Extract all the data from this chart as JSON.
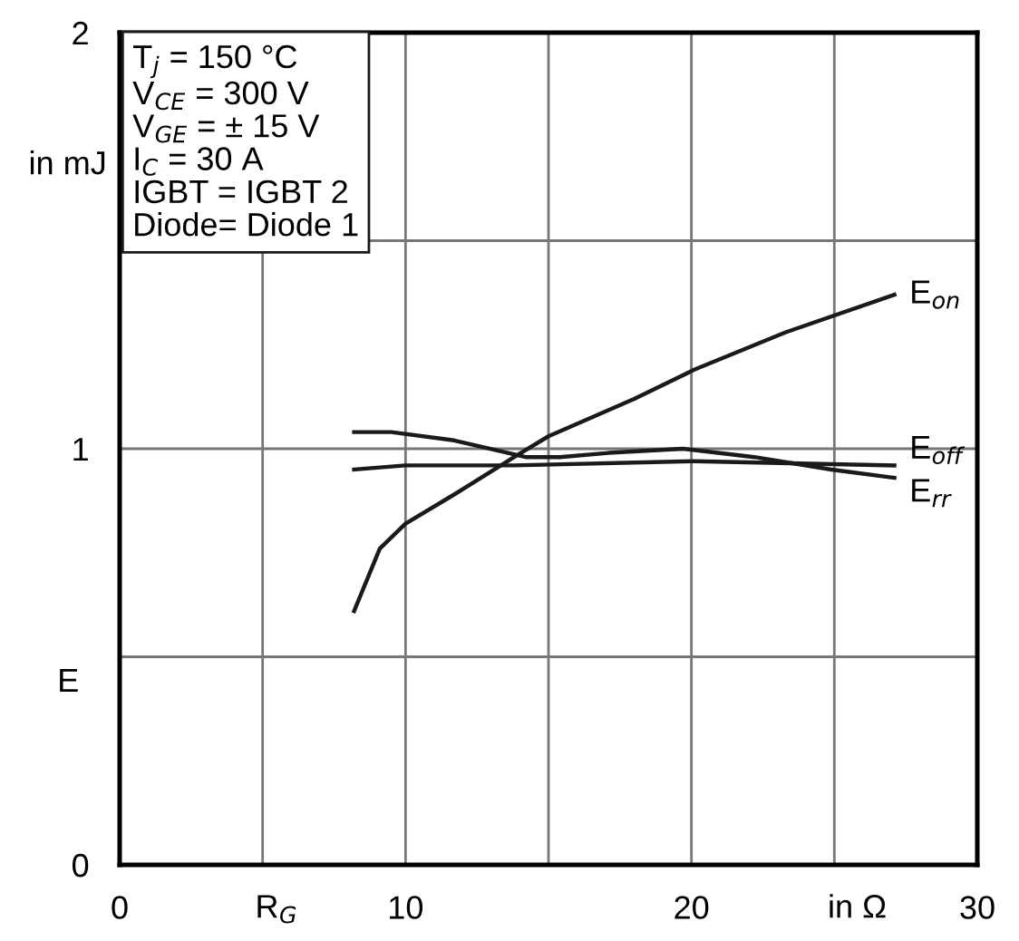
{
  "chart_data": {
    "type": "line",
    "xlabel": "R$_{G}$",
    "ylabel": "E",
    "annotations": [
      "T$_{j}$ = 150 °C\nV$_{CE}$ = 300 V\nV$_{GE}$ = ± 15 V\nI$_{C}$ = 30 A\nIGBT = IGBT 2\nDiode= Diode 1",
      "in mJ",
      "in Ω"
    ],
    "xlim": [
      0,
      30
    ],
    "ylim": [
      0,
      2
    ],
    "xticks": [
      0,
      {
        "value": 5,
        "label": null
      },
      10,
      {
        "value": 15,
        "label": null
      },
      20,
      {
        "value": 25,
        "label": null
      },
      30
    ],
    "yticks": [
      0,
      {
        "value": 0.5,
        "label": null
      },
      1,
      {
        "value": 1.5,
        "label": null
      },
      2
    ],
    "grid": true,
    "legend": false,
    "marker": "none",
    "line_style": "solid",
    "series": [
      {
        "name": "E$_{on}$",
        "color": "#1a1a1a",
        "x": [
          8.2,
          9.1,
          10.0,
          11.7,
          13.8,
          15.0,
          18.0,
          20.1,
          23.3,
          27.1
        ],
        "values": [
          0.61,
          0.76,
          0.82,
          0.89,
          0.98,
          1.03,
          1.12,
          1.19,
          1.28,
          1.37
        ]
      },
      {
        "name": "E$_{off}$",
        "color": "#1a1a1a",
        "x": [
          8.2,
          10.0,
          13.8,
          20.1,
          27.1
        ],
        "values": [
          0.95,
          0.96,
          0.96,
          0.97,
          0.96
        ]
      },
      {
        "name": "E$_{rr}$",
        "color": "#1a1a1a",
        "x": [
          8.2,
          9.5,
          11.7,
          14.2,
          15.4,
          17.1,
          19.7,
          22.2,
          24.9,
          27.1
        ],
        "values": [
          1.04,
          1.04,
          1.02,
          0.98,
          0.98,
          0.99,
          1.0,
          0.98,
          0.95,
          0.93
        ]
      }
    ]
  }
}
